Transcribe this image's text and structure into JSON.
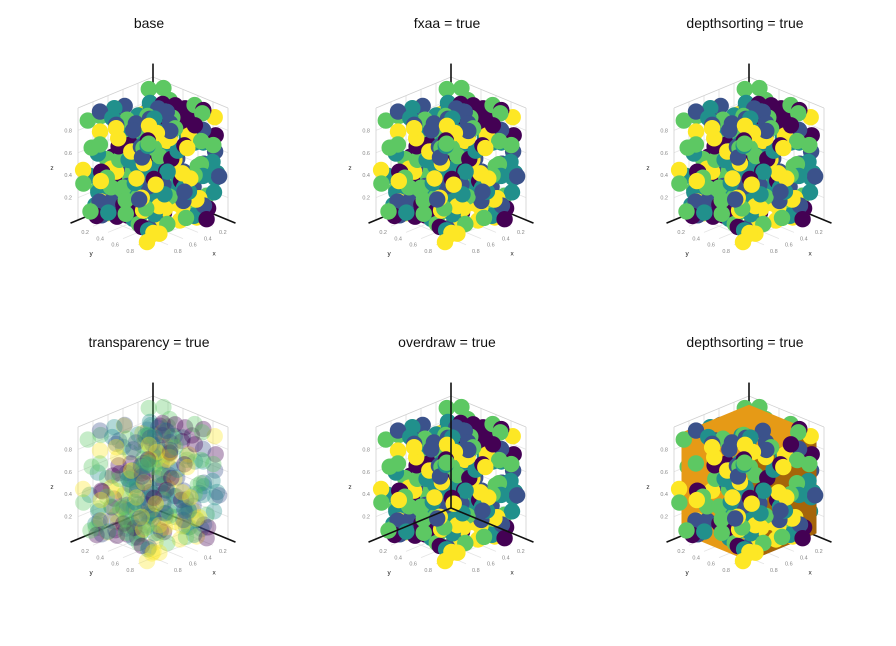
{
  "colors": {
    "viridis": [
      "#440154",
      "#3b528b",
      "#21908c",
      "#5dc863",
      "#fde725"
    ],
    "box_top": "#e69a16",
    "box_side": "#a5650a"
  },
  "chart_data": [
    {
      "type": "scatter",
      "subtype": "meshscatter3d",
      "title": "base",
      "xlabel": "x",
      "ylabel": "y",
      "zlabel": "z",
      "xlim": [
        0,
        1
      ],
      "ylim": [
        0,
        1
      ],
      "zlim": [
        0,
        1
      ],
      "xticks": [
        "0.2",
        "0.4",
        "0.6",
        "0.8"
      ],
      "yticks": [
        "0.2",
        "0.4",
        "0.6",
        "0.8"
      ],
      "zticks": [
        "0.2",
        "0.4",
        "0.6",
        "0.8"
      ],
      "grid": true,
      "legend": "none",
      "marker_alpha": 1,
      "box": false,
      "axes_on_top": false
    },
    {
      "type": "scatter",
      "subtype": "meshscatter3d",
      "title": "fxaa = true",
      "xlabel": "x",
      "ylabel": "y",
      "zlabel": "z",
      "xlim": [
        0,
        1
      ],
      "ylim": [
        0,
        1
      ],
      "zlim": [
        0,
        1
      ],
      "xticks": [
        "0.2",
        "0.4",
        "0.6",
        "0.8"
      ],
      "yticks": [
        "0.2",
        "0.4",
        "0.6",
        "0.8"
      ],
      "zticks": [
        "0.2",
        "0.4",
        "0.6",
        "0.8"
      ],
      "grid": true,
      "legend": "none",
      "marker_alpha": 1,
      "box": false,
      "axes_on_top": false
    },
    {
      "type": "scatter",
      "subtype": "meshscatter3d",
      "title": "depthsorting = true",
      "xlabel": "x",
      "ylabel": "y",
      "zlabel": "z",
      "xlim": [
        0,
        1
      ],
      "ylim": [
        0,
        1
      ],
      "zlim": [
        0,
        1
      ],
      "xticks": [
        "0.2",
        "0.4",
        "0.6",
        "0.8"
      ],
      "yticks": [
        "0.2",
        "0.4",
        "0.6",
        "0.8"
      ],
      "zticks": [
        "0.2",
        "0.4",
        "0.6",
        "0.8"
      ],
      "grid": true,
      "legend": "none",
      "marker_alpha": 1,
      "box": false,
      "axes_on_top": false
    },
    {
      "type": "scatter",
      "subtype": "meshscatter3d",
      "title": "transparency = true",
      "xlabel": "x",
      "ylabel": "y",
      "zlabel": "z",
      "xlim": [
        0,
        1
      ],
      "ylim": [
        0,
        1
      ],
      "zlim": [
        0,
        1
      ],
      "xticks": [
        "0.2",
        "0.4",
        "0.6",
        "0.8"
      ],
      "yticks": [
        "0.2",
        "0.4",
        "0.6",
        "0.8"
      ],
      "zticks": [
        "0.2",
        "0.4",
        "0.6",
        "0.8"
      ],
      "grid": true,
      "legend": "none",
      "marker_alpha": 0.35,
      "box": false,
      "axes_on_top": false
    },
    {
      "type": "scatter",
      "subtype": "meshscatter3d",
      "title": "overdraw = true",
      "xlabel": "x",
      "ylabel": "y",
      "zlabel": "z",
      "xlim": [
        0,
        1
      ],
      "ylim": [
        0,
        1
      ],
      "zlim": [
        0,
        1
      ],
      "xticks": [
        "0.2",
        "0.4",
        "0.6",
        "0.8"
      ],
      "yticks": [
        "0.2",
        "0.4",
        "0.6",
        "0.8"
      ],
      "zticks": [
        "0.2",
        "0.4",
        "0.6",
        "0.8"
      ],
      "grid": true,
      "legend": "none",
      "marker_alpha": 1,
      "box": false,
      "axes_on_top": true
    },
    {
      "type": "scatter",
      "subtype": "meshscatter3d",
      "title": "depthsorting = true",
      "xlabel": "x",
      "ylabel": "y",
      "zlabel": "z",
      "xlim": [
        0,
        1
      ],
      "ylim": [
        0,
        1
      ],
      "zlim": [
        0,
        1
      ],
      "xticks": [
        "0.2",
        "0.4",
        "0.6",
        "0.8"
      ],
      "yticks": [
        "0.2",
        "0.4",
        "0.6",
        "0.8"
      ],
      "zticks": [
        "0.2",
        "0.4",
        "0.6",
        "0.8"
      ],
      "grid": true,
      "legend": "none",
      "marker_alpha": 1,
      "box": true,
      "axes_on_top": false
    }
  ]
}
